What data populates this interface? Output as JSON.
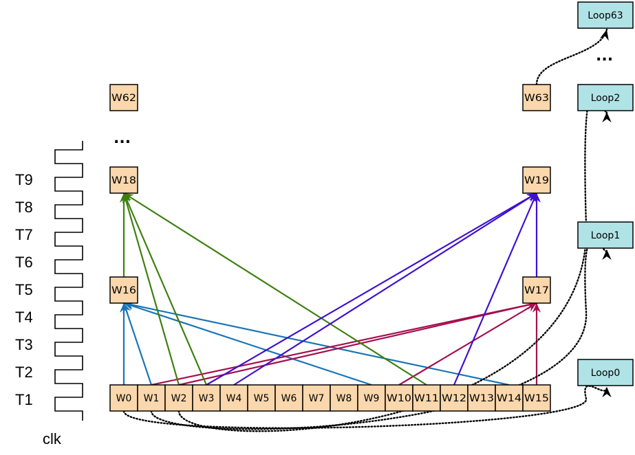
{
  "time_labels": [
    "T1",
    "T2",
    "T3",
    "T4",
    "T5",
    "T6",
    "T7",
    "T8",
    "T9"
  ],
  "clock_label": "clk",
  "bottom_words": [
    "W0",
    "W1",
    "W2",
    "W3",
    "W4",
    "W5",
    "W6",
    "W7",
    "W8",
    "W9",
    "W10",
    "W11",
    "W12",
    "W13",
    "W14",
    "W15"
  ],
  "left_words": [
    "W16",
    "W18",
    "W62"
  ],
  "right_words": [
    "W17",
    "W19",
    "W63"
  ],
  "loops": [
    "Loop0",
    "Loop1",
    "Loop2",
    "Loop63"
  ],
  "ellipsis": "...",
  "colors": {
    "word_fill": "#fad7ac",
    "loop_fill": "#b0e3e6",
    "blue": "#1a74b5",
    "green": "#3c7f0f",
    "purple": "#3f10d0",
    "crimson": "#a50f4f"
  },
  "edges": [
    {
      "from": "W0",
      "to": "W16",
      "color": "blue"
    },
    {
      "from": "W1",
      "to": "W16",
      "color": "blue"
    },
    {
      "from": "W9",
      "to": "W16",
      "color": "blue"
    },
    {
      "from": "W14",
      "to": "W16",
      "color": "blue"
    },
    {
      "from": "W1",
      "to": "W17",
      "color": "crimson"
    },
    {
      "from": "W2",
      "to": "W17",
      "color": "crimson"
    },
    {
      "from": "W10",
      "to": "W17",
      "color": "crimson"
    },
    {
      "from": "W15",
      "to": "W17",
      "color": "crimson"
    },
    {
      "from": "W16",
      "to": "W18",
      "color": "green"
    },
    {
      "from": "W2",
      "to": "W18",
      "color": "green"
    },
    {
      "from": "W3",
      "to": "W18",
      "color": "green"
    },
    {
      "from": "W11",
      "to": "W18",
      "color": "green"
    },
    {
      "from": "W17",
      "to": "W19",
      "color": "purple"
    },
    {
      "from": "W3",
      "to": "W19",
      "color": "purple"
    },
    {
      "from": "W4",
      "to": "W19",
      "color": "purple"
    },
    {
      "from": "W12",
      "to": "W19",
      "color": "purple"
    }
  ],
  "loop_links": [
    {
      "from": "W0",
      "to": "Loop0"
    },
    {
      "from": "W1",
      "to": "Loop1"
    },
    {
      "from": "W2",
      "to": "Loop2"
    },
    {
      "from": "W63",
      "to": "Loop63"
    }
  ]
}
